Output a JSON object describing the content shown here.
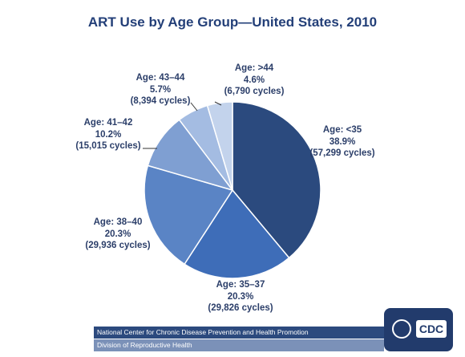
{
  "chart_data": {
    "type": "pie",
    "title": "ART Use by Age Group—United States, 2010",
    "slices": [
      {
        "label": "Age: <35",
        "percent_text": "38.9%",
        "percent": 38.9,
        "cycles_text": "(57,299 cycles)",
        "cycles": 57299,
        "color": "#2b4a7e"
      },
      {
        "label": "Age: 35–37",
        "percent_text": "20.3%",
        "percent": 20.3,
        "cycles_text": "(29,826 cycles)",
        "cycles": 29826,
        "color": "#3e6db8"
      },
      {
        "label": "Age: 38–40",
        "percent_text": "20.3%",
        "percent": 20.3,
        "cycles_text": "(29,936 cycles)",
        "cycles": 29936,
        "color": "#5a84c5"
      },
      {
        "label": "Age: 41–42",
        "percent_text": "10.2%",
        "percent": 10.2,
        "cycles_text": "(15,015 cycles)",
        "cycles": 15015,
        "color": "#7f9fd2"
      },
      {
        "label": "Age: 43–44",
        "percent_text": "5.7%",
        "percent": 5.7,
        "cycles_text": "(8,394 cycles)",
        "cycles": 8394,
        "color": "#a4bce2"
      },
      {
        "label": "Age: >44",
        "percent_text": "4.6%",
        "percent": 4.6,
        "cycles_text": "(6,790 cycles)",
        "cycles": 6790,
        "color": "#c3d3ec"
      }
    ]
  },
  "footer": {
    "line1": "National Center for Chronic Disease Prevention and Health Promotion",
    "line2": "Division of Reproductive Health"
  },
  "logo": {
    "text": "CDC",
    "seal_icon": "hhs-eagle-seal-icon"
  }
}
